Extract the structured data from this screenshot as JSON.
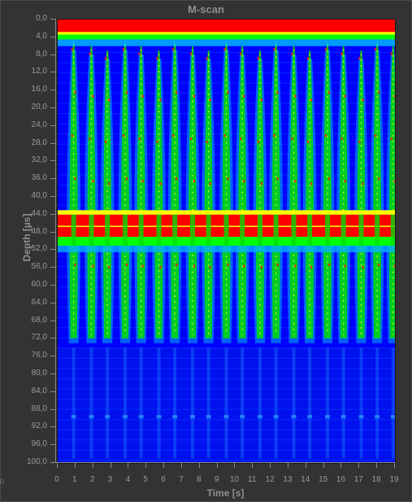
{
  "window": {
    "title": "M-scan"
  },
  "axes": {
    "y_label": "Depth [µs]",
    "x_label": "Time [s]",
    "y_ticks": [
      "0,0",
      "4,0",
      "8,0",
      "12,0",
      "16,0",
      "20,0",
      "24,0",
      "28,0",
      "32,0",
      "36,0",
      "40,0",
      "44,0",
      "48,0",
      "52,0",
      "56,0",
      "60,0",
      "64,0",
      "68,0",
      "72,0",
      "76,0",
      "80,0",
      "84,0",
      "88,0",
      "92,0",
      "96,0",
      "100,0"
    ],
    "x_ticks": [
      "0",
      "1",
      "2",
      "3",
      "4",
      "5",
      "6",
      "7",
      "8",
      "9",
      "10",
      "11",
      "12",
      "13",
      "14",
      "15",
      "16",
      "17",
      "18",
      "19"
    ],
    "corner_label": "0"
  },
  "chart_data": {
    "type": "heatmap",
    "title": "M-scan",
    "xlabel": "Time [s]",
    "ylabel": "Depth [µs]",
    "xlim": [
      0,
      19
    ],
    "ylim": [
      0,
      100
    ],
    "colormap": [
      "#0000ff",
      "#00c0ff",
      "#00ff00",
      "#ffff00",
      "#ff0000"
    ],
    "background_color": "#0000ff",
    "bands": [
      {
        "depth_start": 0,
        "depth_end": 3,
        "color": "#ff0000"
      },
      {
        "depth_start": 3,
        "depth_end": 4.5,
        "color": "#00ff00"
      },
      {
        "depth_start": 44,
        "depth_end": 49,
        "color": "#ff0000"
      },
      {
        "depth_start": 49,
        "depth_end": 51,
        "color": "#00ff00"
      }
    ],
    "pulse_times": [
      0.9,
      1.9,
      2.8,
      3.8,
      4.7,
      5.7,
      6.6,
      7.6,
      8.5,
      9.5,
      10.4,
      11.4,
      12.3,
      13.3,
      14.2,
      15.2,
      16.1,
      17.1,
      18.0,
      18.9
    ],
    "pulse_depth_range": [
      5,
      73
    ],
    "grid": false
  }
}
